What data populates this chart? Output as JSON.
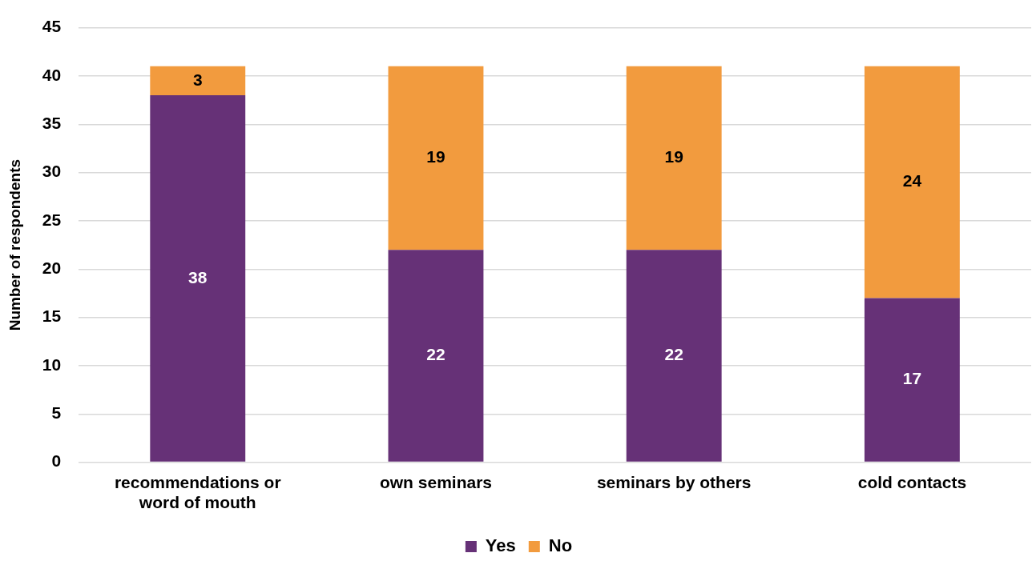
{
  "chart_data": {
    "type": "bar",
    "stacked": true,
    "categories": [
      "recommendations or word of mouth",
      "own seminars",
      "seminars by others",
      "cold contacts"
    ],
    "series": [
      {
        "name": "Yes",
        "color": "#663177",
        "values": [
          38,
          22,
          22,
          17
        ]
      },
      {
        "name": "No",
        "color": "#f29b3e",
        "values": [
          3,
          19,
          19,
          24
        ]
      }
    ],
    "ylabel": "Number of respondents",
    "ylim": [
      0,
      45
    ],
    "yticks": [
      0,
      5,
      10,
      15,
      20,
      25,
      30,
      35,
      40,
      45
    ],
    "grid": "y",
    "legend": "bottom",
    "data_labels": true
  }
}
